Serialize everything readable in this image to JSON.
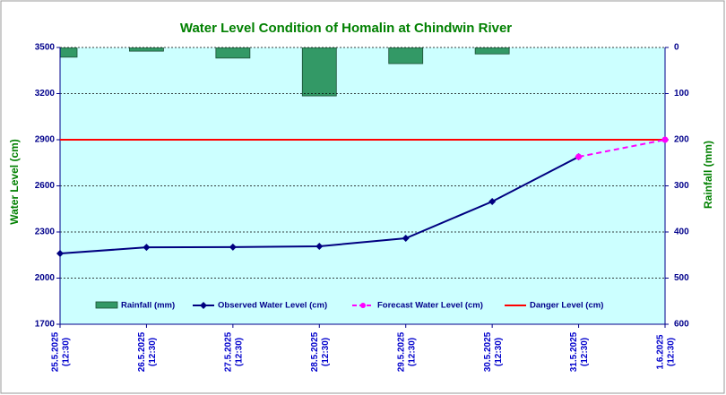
{
  "chart_data": {
    "type": "line",
    "title": "Water Level Condition of Homalin at Chindwin River",
    "ylabel": "Water Level (cm)",
    "y2label": "Rainfall (mm)",
    "categories": [
      [
        "25.5.2025",
        "(12:30)"
      ],
      [
        "26.5.2025",
        "(12:30)"
      ],
      [
        "27.5.2025",
        "(12:30)"
      ],
      [
        "28.5.2025",
        "(12:30)"
      ],
      [
        "29.5.2025",
        "(12:30)"
      ],
      [
        "30.5.2025",
        "(12:30)"
      ],
      [
        "31.5.2025",
        "(12:30)"
      ],
      [
        "1.6.2025",
        "(12:30)"
      ]
    ],
    "series": [
      {
        "name": "Rainfall (mm)",
        "type": "bar",
        "axis": "y2",
        "color": "#339966",
        "values": [
          21,
          8,
          23,
          105,
          35,
          14,
          null,
          null
        ]
      },
      {
        "name": "Observed Water Level (cm)",
        "type": "line",
        "color": "#000080",
        "marker": "diamond",
        "values": [
          2160,
          2200,
          2202,
          2207,
          2259,
          2498,
          2789,
          null
        ]
      },
      {
        "name": "Forecast Water Level (cm)",
        "type": "line",
        "color": "#ff00ff",
        "dashed": true,
        "marker": "circle",
        "values": [
          null,
          null,
          null,
          null,
          null,
          null,
          2789,
          2900
        ]
      },
      {
        "name": "Danger Level (cm)",
        "type": "line",
        "color": "#ff0000",
        "values": [
          2900,
          2900,
          2900,
          2900,
          2900,
          2900,
          2900,
          2900
        ]
      }
    ],
    "ylim": [
      1700,
      3500
    ],
    "yticks": [
      1700,
      2000,
      2300,
      2600,
      2900,
      3200,
      3500
    ],
    "y2lim": [
      0,
      600
    ],
    "y2_inverted": true,
    "y2ticks": [
      0,
      100,
      200,
      300,
      400,
      500,
      600
    ],
    "grid": true,
    "legend": "bottom"
  }
}
